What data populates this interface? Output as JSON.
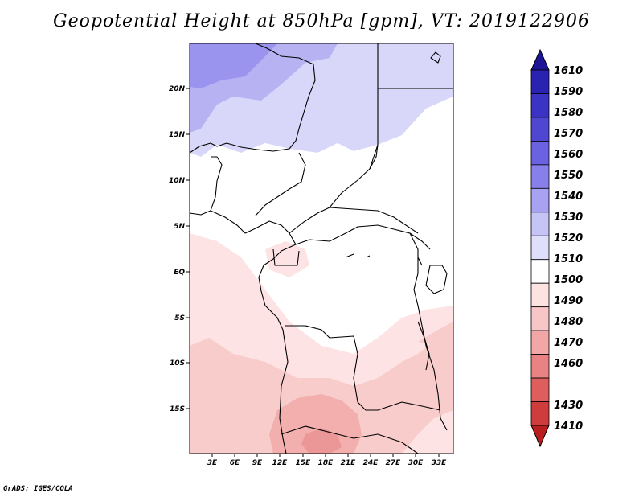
{
  "title": "Geopotential Height at 850hPa [gpm], VT: 2019122906",
  "credit": "GrADS: IGES/COLA",
  "lat_labels": [
    "20N",
    "15N",
    "10N",
    "5N",
    "EQ",
    "5S",
    "10S",
    "15S"
  ],
  "lon_labels": [
    "3E",
    "6E",
    "9E",
    "12E",
    "15E",
    "18E",
    "21E",
    "24E",
    "27E",
    "30E",
    "33E"
  ],
  "colorbar": {
    "levels": [
      "1610",
      "1590",
      "1580",
      "1570",
      "1560",
      "1550",
      "1540",
      "1530",
      "1520",
      "1510",
      "1500",
      "1490",
      "1480",
      "1470",
      "1460",
      "1430",
      "1410"
    ],
    "colors": [
      "#1e1496",
      "#2a22b0",
      "#3a33c4",
      "#4f46d2",
      "#6a62e0",
      "#8880ea",
      "#a7a2f2",
      "#c6c4f7",
      "#e0dffb",
      "#ffffff",
      "#fde2e2",
      "#f8c6c6",
      "#f2a6a6",
      "#e98282",
      "#de5e5e",
      "#cf3c3c",
      "#b81e1e"
    ]
  },
  "map_colors": {
    "blue_dark": "#9a94ee",
    "blue_mid": "#b7b3f3",
    "blue_light": "#d8d7fa",
    "white": "#ffffff",
    "pink_light": "#fde3e3",
    "pink_mid": "#f9cccc",
    "pink_deep": "#f3aeae",
    "pink_deepest": "#eb9797"
  }
}
